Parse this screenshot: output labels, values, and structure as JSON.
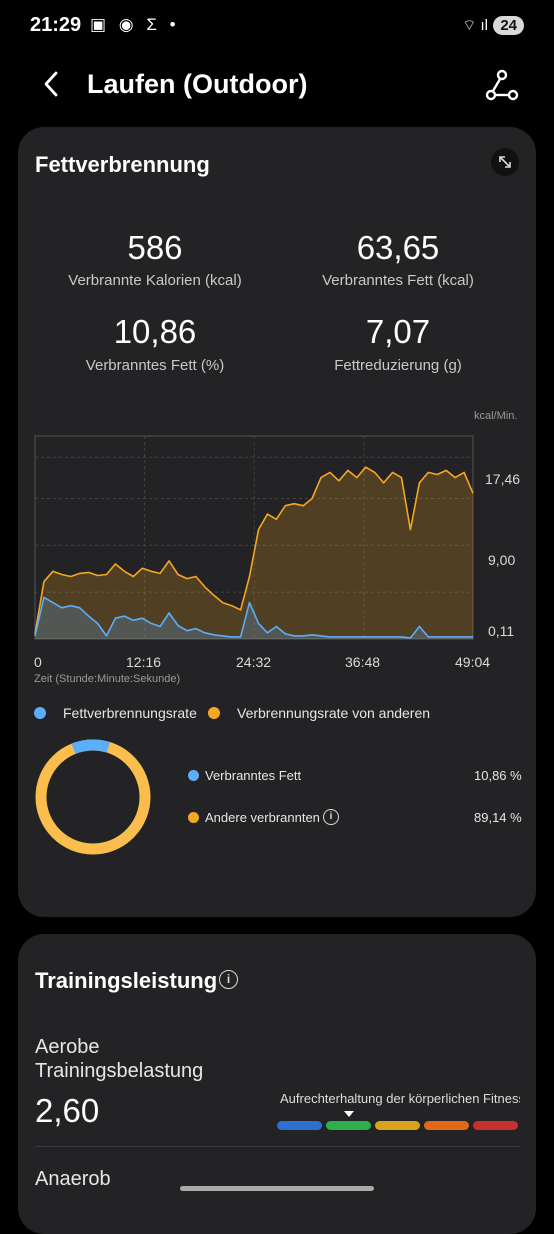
{
  "status_bar": {
    "time": "21:29",
    "battery": "24"
  },
  "header": {
    "title": "Laufen (Outdoor)"
  },
  "fat_card": {
    "title": "Fettverbrennung",
    "stats": [
      {
        "value": "586",
        "label": "Verbrannte Kalorien (kcal)"
      },
      {
        "value": "63,65",
        "label": "Verbranntes Fett (kcal)"
      },
      {
        "value": "10,86",
        "label": "Verbranntes Fett (%)"
      },
      {
        "value": "7,07",
        "label": "Fettreduzierung (g)"
      }
    ],
    "legend": [
      {
        "label": "Fettverbrennungsrate",
        "color": "#5aaefc"
      },
      {
        "label": "Verbrennungsrate von anderen",
        "color": "#f5a623"
      }
    ],
    "donut": {
      "items": [
        {
          "label": "Verbranntes Fett",
          "value": "10,86 %",
          "color": "#5aaefc"
        },
        {
          "label": "Andere verbrannten",
          "value": "89,14 %",
          "color": "#fbbd4c"
        }
      ]
    }
  },
  "chart_data": {
    "type": "area",
    "unit_label": "kcal/Min.",
    "xlabel": "Zeit (Stunde:Minute:Sekunde)",
    "x_ticks": [
      "0",
      "12:16",
      "24:32",
      "36:48",
      "49:04"
    ],
    "y_ticks": [
      "17,46",
      "9,00",
      "0,11"
    ],
    "ylim": [
      0.11,
      17.46
    ],
    "series": [
      {
        "name": "Verbrennungsrate von anderen",
        "color": "#f5a623",
        "x": [
          0,
          1,
          2,
          3,
          4,
          5,
          6,
          7,
          8,
          9,
          10,
          11,
          12,
          13,
          14,
          15,
          16,
          17,
          18,
          19,
          20,
          21,
          22,
          23,
          24,
          25,
          26,
          27,
          28,
          29,
          30,
          31,
          32,
          33,
          34,
          35,
          36,
          37,
          38,
          39,
          40,
          41,
          42,
          43,
          44,
          45,
          46,
          47,
          48,
          49
        ],
        "values": [
          0.5,
          5.5,
          6.5,
          6.2,
          6.0,
          6.3,
          6.4,
          6.1,
          6.2,
          7.2,
          6.5,
          6.0,
          6.8,
          6.5,
          6.3,
          7.5,
          6.2,
          5.8,
          6.0,
          5.0,
          4.2,
          3.5,
          3.2,
          2.8,
          6.0,
          10.5,
          12.0,
          11.5,
          12.8,
          13.0,
          12.8,
          13.5,
          15.5,
          16.0,
          15.2,
          16.2,
          15.5,
          16.5,
          16.0,
          15.0,
          16.0,
          15.5,
          10.5,
          15.0,
          16.0,
          15.8,
          16.2,
          15.5,
          16.0,
          14.0
        ]
      },
      {
        "name": "Fettverbrennungsrate",
        "color": "#5aaefc",
        "x": [
          0,
          1,
          2,
          3,
          4,
          5,
          6,
          7,
          8,
          9,
          10,
          11,
          12,
          13,
          14,
          15,
          16,
          17,
          18,
          19,
          20,
          21,
          22,
          23,
          24,
          25,
          26,
          27,
          28,
          29,
          30,
          31,
          32,
          33,
          34,
          35,
          36,
          37,
          38,
          39,
          40,
          41,
          42,
          43,
          44,
          45,
          46,
          47,
          48,
          49
        ],
        "values": [
          0.3,
          4.0,
          3.5,
          3.0,
          3.2,
          3.0,
          2.2,
          1.5,
          0.3,
          2.0,
          2.2,
          1.8,
          2.0,
          1.5,
          1.2,
          2.5,
          1.3,
          0.8,
          1.0,
          0.6,
          0.4,
          0.3,
          0.2,
          0.2,
          3.5,
          1.5,
          0.6,
          1.2,
          0.5,
          0.3,
          0.3,
          0.4,
          0.3,
          0.2,
          0.2,
          0.2,
          0.2,
          0.2,
          0.2,
          0.2,
          0.2,
          0.2,
          0.1,
          1.2,
          0.2,
          0.2,
          0.2,
          0.2,
          0.2,
          0.2
        ]
      }
    ]
  },
  "training_card": {
    "title": "Trainingsleistung",
    "metric_label_line1": "Aerobe",
    "metric_label_line2": "Trainingsbelastung",
    "metric_value": "2,60",
    "scale_label": "Aufrechterhaltung der körperlichen Fitness",
    "scale_colors": [
      "#2e6fd1",
      "#2bb04c",
      "#d9a21c",
      "#e06a1a",
      "#c8302e"
    ],
    "next_label": "Anaerob"
  }
}
